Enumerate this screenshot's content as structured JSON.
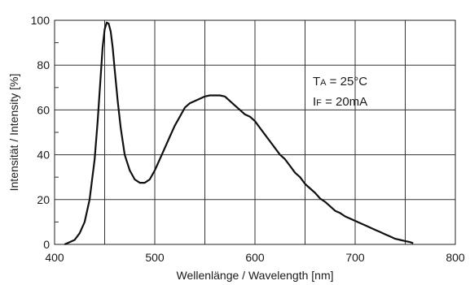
{
  "chart_data": {
    "type": "line",
    "title": "",
    "xlabel": "Wellenlänge / Wavelength [nm]",
    "ylabel": "Intensität / Intensity [%]",
    "xlim": [
      400,
      800
    ],
    "ylim": [
      0,
      100
    ],
    "x_ticks": [
      "400",
      "500",
      "600",
      "700",
      "800"
    ],
    "y_ticks": [
      "0",
      "20",
      "40",
      "60",
      "80",
      "100"
    ],
    "grid": true,
    "annotations": [
      {
        "main": "T",
        "sub": "A",
        "rest": " = 25°C"
      },
      {
        "main": "I",
        "sub": "F",
        "rest": " = 20mA"
      }
    ],
    "series": [
      {
        "x": [
          410,
          420,
          425,
          430,
          435,
          440,
          443,
          446,
          448,
          450,
          452,
          454,
          456,
          458,
          460,
          463,
          466,
          470,
          475,
          480,
          485,
          490,
          495,
          500,
          505,
          510,
          515,
          520,
          525,
          530,
          535,
          540,
          545,
          550,
          555,
          560,
          565,
          570,
          575,
          580,
          585,
          590,
          595,
          600,
          605,
          610,
          615,
          620,
          625,
          630,
          635,
          640,
          645,
          650,
          655,
          660,
          665,
          670,
          675,
          680,
          685,
          690,
          695,
          700,
          705,
          710,
          715,
          720,
          725,
          730,
          735,
          740,
          745,
          750,
          755,
          758
        ],
        "y": [
          0,
          2,
          5,
          10,
          20,
          38,
          55,
          75,
          88,
          96,
          99,
          98.5,
          95,
          88,
          78,
          64,
          52,
          40,
          33,
          29,
          27.5,
          27.5,
          29,
          33,
          38,
          43,
          48,
          53,
          57,
          61,
          63,
          64,
          65,
          66,
          66.5,
          66.5,
          66.5,
          66,
          64,
          62,
          60,
          58,
          57,
          55,
          52,
          49,
          46,
          43,
          40,
          38,
          35,
          32,
          30,
          27,
          25,
          23,
          20.5,
          19,
          17,
          15,
          14,
          12.5,
          11.5,
          10.5,
          9.5,
          8.5,
          7.5,
          6.5,
          5.5,
          4.5,
          3.5,
          2.5,
          2,
          1.5,
          1,
          0.5
        ]
      }
    ]
  }
}
